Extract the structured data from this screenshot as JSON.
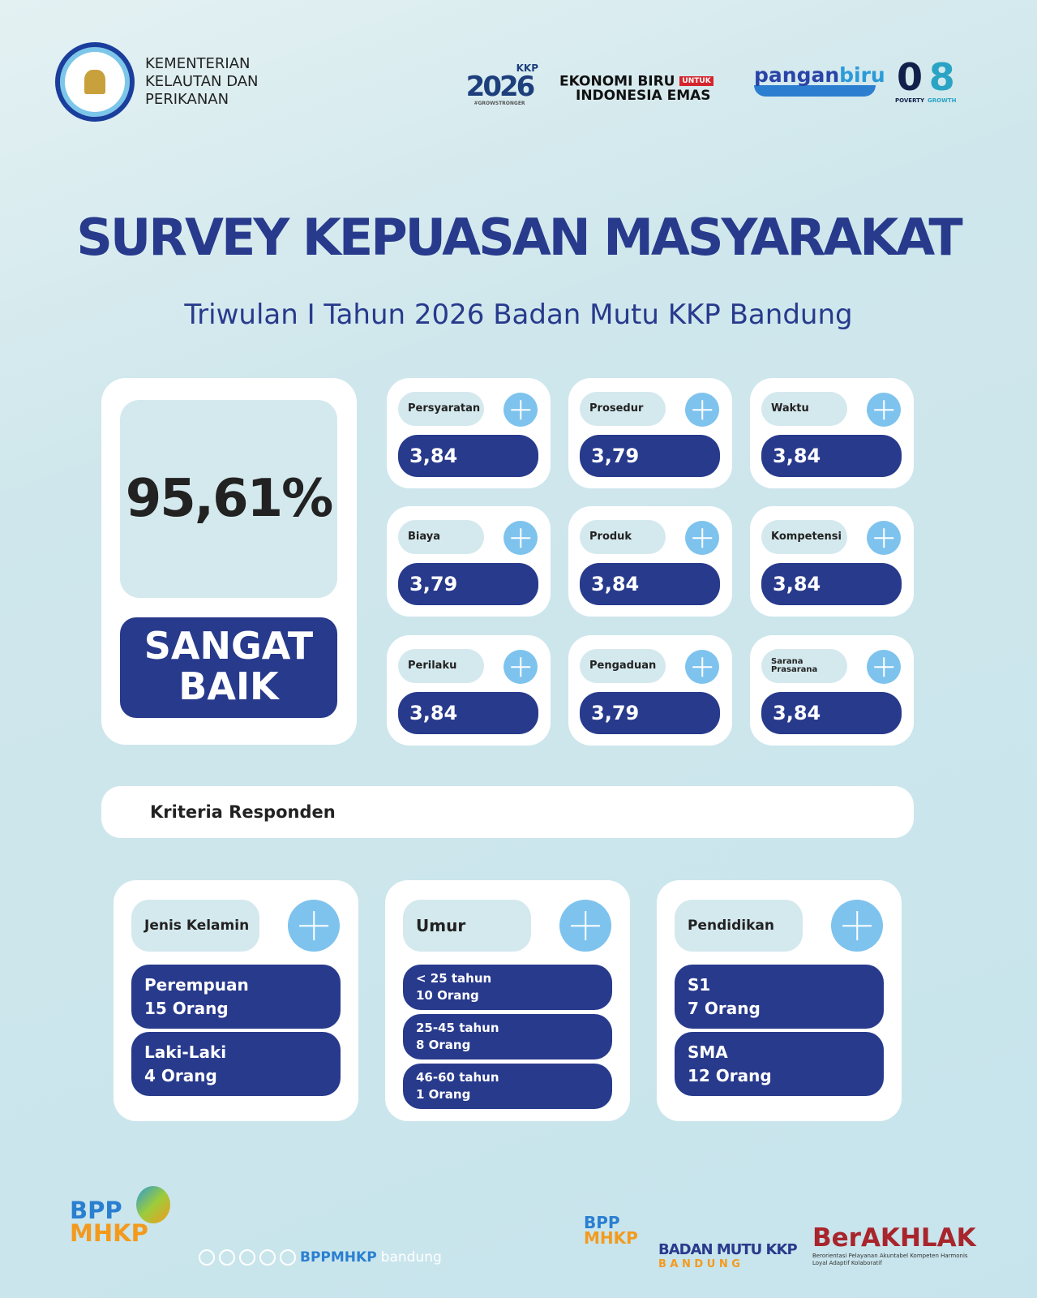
{
  "header": {
    "ministry": [
      "KEMENTERIAN",
      "KELAUTAN DAN",
      "PERIKANAN"
    ],
    "logos": {
      "kkp2026": {
        "top": "KKP",
        "year": "2026",
        "tag": "#GROWSTRONGER"
      },
      "ekonomi_biru": {
        "line1": "EKONOMI BIRU",
        "untuk": "UNTUK",
        "line2": "INDONESIA EMAS"
      },
      "panganbiru": {
        "a": "pangan",
        "b": "biru"
      },
      "zero_eight": {
        "zero": "0",
        "eight": "8",
        "poverty": "POVERTY",
        "growth": "GROWTH"
      }
    }
  },
  "title": "SURVEY KEPUASAN MASYARAKAT",
  "subtitle": "Triwulan I Tahun 2026 Badan Mutu KKP Bandung",
  "score": {
    "value": "95,61%",
    "rating_line1": "SANGAT",
    "rating_line2": "BAIK"
  },
  "indicators": [
    {
      "label": "Persyaratan",
      "value": "3,84"
    },
    {
      "label": "Prosedur",
      "value": "3,79"
    },
    {
      "label": "Waktu",
      "value": "3,84"
    },
    {
      "label": "Biaya",
      "value": "3,79"
    },
    {
      "label": "Produk",
      "value": "3,84"
    },
    {
      "label": "Kompetensi",
      "value": "3,84"
    },
    {
      "label": "Perilaku",
      "value": "3,84"
    },
    {
      "label": "Pengaduan",
      "value": "3,79"
    },
    {
      "label": "Sarana Prasarana",
      "value": "3,84"
    }
  ],
  "kriteria_title": "Kriteria Responden",
  "respondents": [
    {
      "label": "Jenis Kelamin",
      "items": [
        {
          "a": "Perempuan",
          "b": "15 Orang"
        },
        {
          "a": "Laki-Laki",
          "b": "4 Orang"
        }
      ]
    },
    {
      "label": "Umur",
      "items": [
        {
          "a": "< 25 tahun",
          "b": "10 Orang"
        },
        {
          "a": "25-45 tahun",
          "b": "8 Orang"
        },
        {
          "a": "46-60 tahun",
          "b": "1 Orang"
        }
      ]
    },
    {
      "label": "Pendidikan",
      "items": [
        {
          "a": "S1",
          "b": "7 Orang"
        },
        {
          "a": "SMA",
          "b": "12 Orang"
        }
      ]
    }
  ],
  "footer": {
    "bpp": "BPP",
    "mhkp": "MHKP",
    "social": "BPPMHKP",
    "social_city": "bandung",
    "badan_mutu": "BADAN MUTU KKP",
    "bandung": "B A N D U N G",
    "berakhlak": "BerAKHLAK",
    "berakhlak_sub": "Berorientasi Pelayanan Akuntabel Kompeten Harmonis Loyal Adaptif Kolaboratif"
  },
  "colors": {
    "navy": "#283a8c",
    "light_blue": "#7ec3ee",
    "label_bg": "#d4e9ee",
    "background": "#c9e5ec"
  }
}
